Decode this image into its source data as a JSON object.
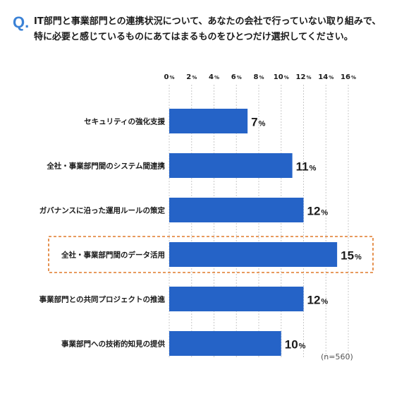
{
  "question": {
    "mark": "Q.",
    "lines": [
      "IT部門と事業部門との連携状況について、あなたの会社で行っていない取り組みで、",
      "特に必要と感じているものにあてはまるものをひとつだけ選択してください。"
    ]
  },
  "chart_data": {
    "type": "bar",
    "orientation": "horizontal",
    "categories": [
      "セキュリティの強化支援",
      "全社・事業部門間のシステム間連携",
      "ガバナンスに沿った運用ルールの策定",
      "全社・事業部門間のデータ活用",
      "事業部門との共同プロジェクトの推進",
      "事業部門への技術的知見の提供"
    ],
    "values": [
      7,
      11,
      12,
      15,
      12,
      10
    ],
    "value_labels": [
      "7",
      "11",
      "12",
      "15",
      "12",
      "10"
    ],
    "unit": "%",
    "xticks": [
      "0",
      "2",
      "4",
      "6",
      "8",
      "10",
      "12",
      "14",
      "16"
    ],
    "tick_unit": "%",
    "xlim": [
      0,
      16
    ],
    "highlight_index": 3,
    "grid": "vertical dashed",
    "bar_color": "#2563c7",
    "highlight_color": "#e07a2a",
    "note": "(n=560)"
  }
}
